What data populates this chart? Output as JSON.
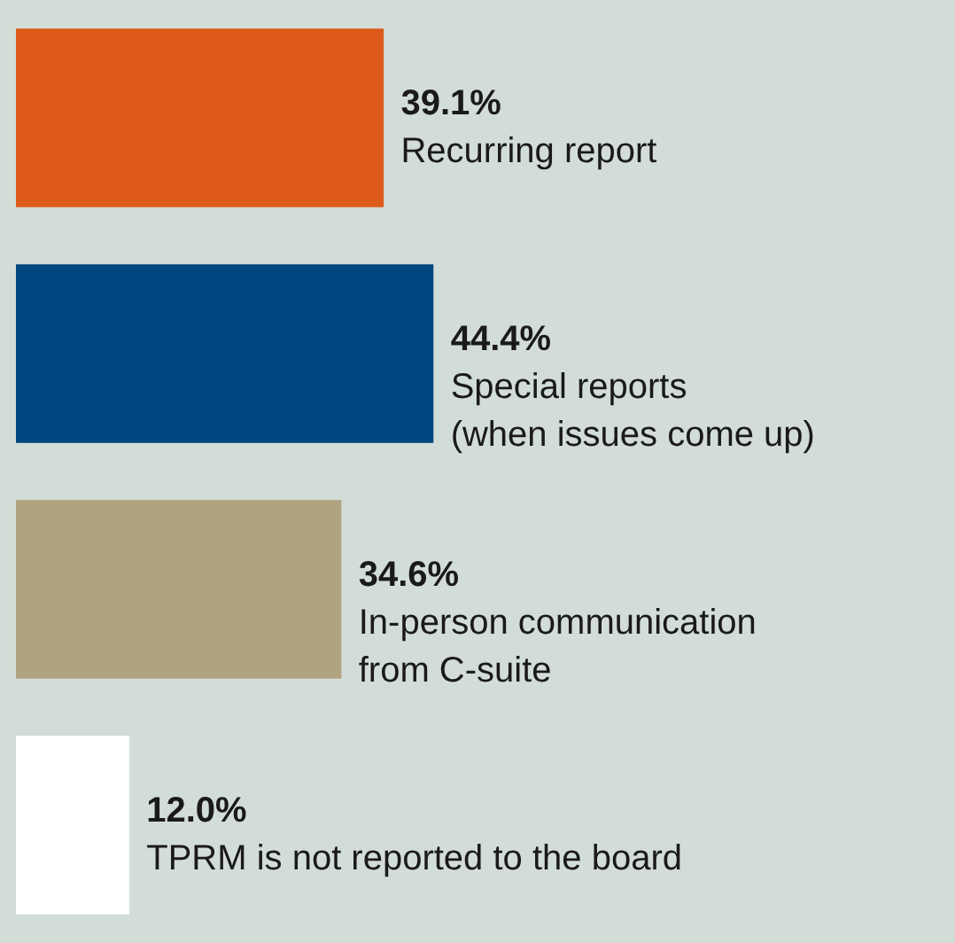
{
  "chart_data": {
    "type": "bar",
    "orientation": "horizontal",
    "categories": [
      "Recurring report",
      "Special reports\n(when issues come up)",
      "In-person communication\nfrom C-suite",
      "TPRM is not reported to the board"
    ],
    "values": [
      39.1,
      44.4,
      34.6,
      12.0
    ],
    "colors": [
      "#dd5a1a",
      "#00467f",
      "#b1a380",
      "#ffffff"
    ],
    "value_labels": [
      "39.1%",
      "44.4%",
      "34.6%",
      "12.0%"
    ],
    "xlim": [
      0,
      100
    ],
    "tick_labels": false
  }
}
